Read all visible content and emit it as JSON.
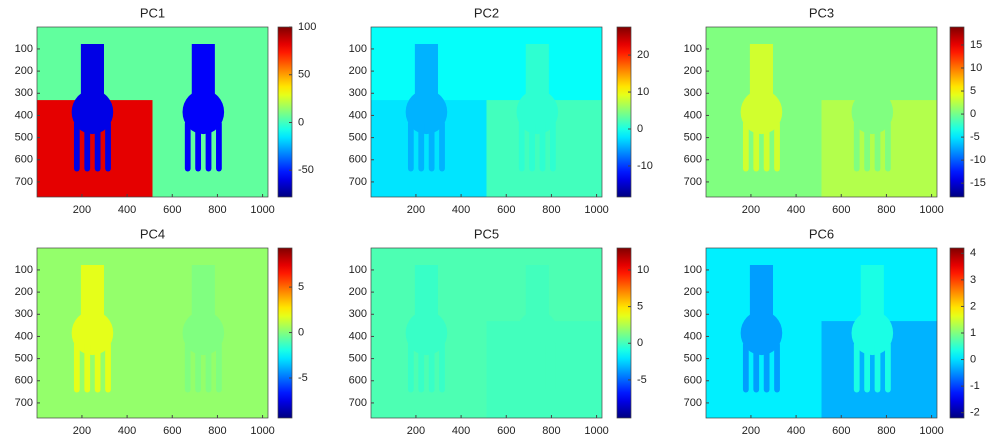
{
  "chart_data": [
    {
      "type": "heatmap",
      "title": "PC1",
      "colormap": "jet",
      "y_reversed": true,
      "xlim": [
        1,
        1024
      ],
      "ylim": [
        1,
        768
      ],
      "xticks": [
        200,
        400,
        600,
        800,
        1000
      ],
      "yticks": [
        100,
        200,
        300,
        400,
        500,
        600,
        700
      ],
      "clim": [
        -78,
        100
      ],
      "cticks": [
        -50,
        0,
        50,
        100
      ]
    },
    {
      "type": "heatmap",
      "title": "PC2",
      "colormap": "jet",
      "y_reversed": true,
      "xlim": [
        1,
        1024
      ],
      "ylim": [
        1,
        768
      ],
      "xticks": [
        200,
        400,
        600,
        800,
        1000
      ],
      "yticks": [
        100,
        200,
        300,
        400,
        500,
        600,
        700
      ],
      "clim": [
        -18.4,
        27.6
      ],
      "cticks": [
        -10,
        0,
        10,
        20
      ]
    },
    {
      "type": "heatmap",
      "title": "PC3",
      "colormap": "jet",
      "y_reversed": true,
      "xlim": [
        1,
        1024
      ],
      "ylim": [
        1,
        768
      ],
      "xticks": [
        200,
        400,
        600,
        800,
        1000
      ],
      "yticks": [
        100,
        200,
        300,
        400,
        500,
        600,
        700
      ],
      "clim": [
        -18,
        18.9
      ],
      "cticks": [
        -15,
        -10,
        -5,
        0,
        5,
        10,
        15
      ]
    },
    {
      "type": "heatmap",
      "title": "PC4",
      "colormap": "jet",
      "y_reversed": true,
      "xlim": [
        1,
        1024
      ],
      "ylim": [
        1,
        768
      ],
      "xticks": [
        200,
        400,
        600,
        800,
        1000
      ],
      "yticks": [
        100,
        200,
        300,
        400,
        500,
        600,
        700
      ],
      "clim": [
        -9.4,
        9.3
      ],
      "cticks": [
        -5,
        0,
        5
      ]
    },
    {
      "type": "heatmap",
      "title": "PC5",
      "colormap": "jet",
      "y_reversed": true,
      "xlim": [
        1,
        1024
      ],
      "ylim": [
        1,
        768
      ],
      "xticks": [
        200,
        400,
        600,
        800,
        1000
      ],
      "yticks": [
        100,
        200,
        300,
        400,
        500,
        600,
        700
      ],
      "clim": [
        -10.2,
        13
      ],
      "cticks": [
        -5,
        0,
        5,
        10
      ]
    },
    {
      "type": "heatmap",
      "title": "PC6",
      "colormap": "jet",
      "y_reversed": true,
      "xlim": [
        1,
        1024
      ],
      "ylim": [
        1,
        768
      ],
      "xticks": [
        200,
        400,
        600,
        800,
        1000
      ],
      "yticks": [
        100,
        200,
        300,
        400,
        500,
        600,
        700
      ],
      "clim": [
        -2.2,
        4.2
      ],
      "cticks": [
        -2,
        -1,
        0,
        1,
        2,
        3,
        4
      ]
    }
  ]
}
